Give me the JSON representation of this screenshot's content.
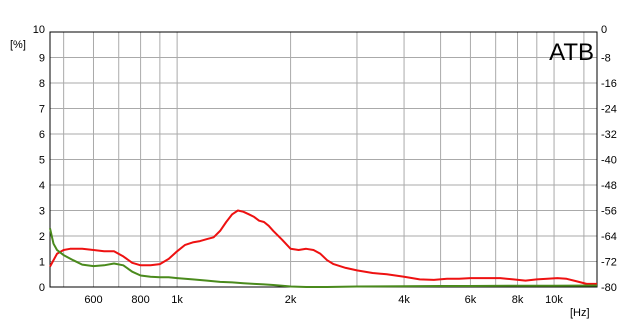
{
  "chart_data": {
    "type": "line",
    "title": "",
    "corner_label": "ATB",
    "x_scale": "log",
    "xlim": [
      460,
      13000
    ],
    "ylim_left": [
      0,
      10
    ],
    "ylim_right": [
      -80,
      0
    ],
    "xlabel": "[Hz]",
    "ylabel_left": "[%]",
    "grid": true,
    "x_major_ticks": [
      {
        "value": 600,
        "label": "600"
      },
      {
        "value": 800,
        "label": "800"
      },
      {
        "value": 1000,
        "label": "1k"
      },
      {
        "value": 2000,
        "label": "2k"
      },
      {
        "value": 4000,
        "label": "4k"
      },
      {
        "value": 6000,
        "label": "6k"
      },
      {
        "value": 8000,
        "label": "8k"
      },
      {
        "value": 10000,
        "label": "10k"
      }
    ],
    "x_minor_ticks": [
      500,
      700,
      900,
      3000,
      5000,
      7000,
      9000,
      12000
    ],
    "y_left_ticks": [
      "0",
      "1",
      "2",
      "3",
      "4",
      "5",
      "6",
      "7",
      "8",
      "9",
      "10"
    ],
    "y_right_ticks": [
      "-80",
      "-72",
      "-64",
      "-56",
      "-48",
      "-40",
      "-32",
      "-24",
      "-16",
      "-8",
      "0"
    ],
    "series": [
      {
        "color": "#ee1111",
        "axis": "left",
        "x": [
          460,
          480,
          500,
          520,
          560,
          600,
          640,
          680,
          720,
          760,
          800,
          850,
          900,
          950,
          1000,
          1050,
          1100,
          1150,
          1200,
          1250,
          1300,
          1350,
          1400,
          1450,
          1500,
          1550,
          1600,
          1650,
          1700,
          1750,
          1800,
          1900,
          2000,
          2100,
          2200,
          2300,
          2400,
          2500,
          2600,
          2800,
          3000,
          3300,
          3600,
          4000,
          4400,
          4800,
          5200,
          5600,
          6000,
          6600,
          7200,
          7800,
          8400,
          9000,
          9600,
          10200,
          10800,
          11500,
          12200,
          13000
        ],
        "y": [
          0.8,
          1.3,
          1.45,
          1.5,
          1.5,
          1.45,
          1.4,
          1.4,
          1.2,
          0.95,
          0.85,
          0.85,
          0.9,
          1.1,
          1.4,
          1.65,
          1.75,
          1.8,
          1.88,
          1.95,
          2.2,
          2.55,
          2.85,
          3.0,
          2.95,
          2.85,
          2.75,
          2.6,
          2.55,
          2.4,
          2.2,
          1.85,
          1.5,
          1.45,
          1.5,
          1.45,
          1.3,
          1.05,
          0.9,
          0.75,
          0.65,
          0.55,
          0.5,
          0.4,
          0.3,
          0.28,
          0.32,
          0.32,
          0.35,
          0.35,
          0.35,
          0.3,
          0.25,
          0.3,
          0.32,
          0.35,
          0.32,
          0.22,
          0.12,
          0.12
        ]
      },
      {
        "color": "#4a8a1c",
        "axis": "left",
        "x": [
          460,
          470,
          480,
          500,
          530,
          560,
          600,
          640,
          680,
          720,
          760,
          800,
          850,
          900,
          950,
          1000,
          1100,
          1200,
          1300,
          1400,
          1500,
          1600,
          1700,
          1800,
          1900,
          2000,
          2200,
          2500,
          3000,
          4000,
          5000,
          6000,
          8000,
          10000,
          13000
        ],
        "y": [
          2.3,
          1.7,
          1.45,
          1.25,
          1.05,
          0.88,
          0.82,
          0.85,
          0.92,
          0.85,
          0.6,
          0.45,
          0.4,
          0.38,
          0.38,
          0.35,
          0.3,
          0.25,
          0.2,
          0.18,
          0.15,
          0.12,
          0.1,
          0.08,
          0.05,
          0.02,
          0.0,
          0.0,
          0.02,
          0.03,
          0.04,
          0.04,
          0.05,
          0.05,
          0.06
        ]
      }
    ]
  }
}
